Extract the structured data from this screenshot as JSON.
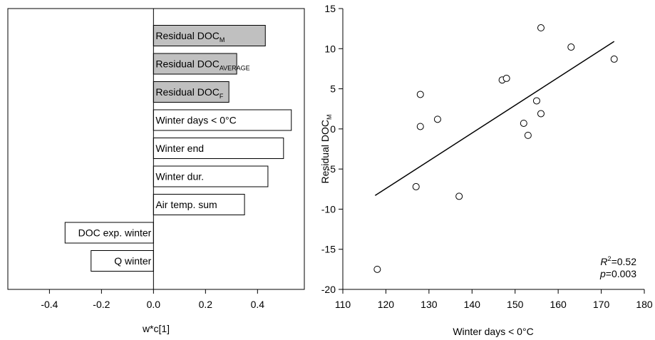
{
  "chart_data": [
    {
      "type": "bar",
      "orientation": "horizontal",
      "xlabel": "w*c[1]",
      "xlim": [
        -0.56,
        0.58
      ],
      "xticks": [
        -0.4,
        -0.2,
        0.0,
        0.2,
        0.4
      ],
      "xtick_labels": [
        "-0.4",
        "-0.2",
        "0.0",
        "0.2",
        "0.4"
      ],
      "bars": [
        {
          "label": "Residual DOC",
          "sub": "M",
          "value": 0.43,
          "color": "#c0c0c0"
        },
        {
          "label": "Residual DOC",
          "sub": "AVERAGE",
          "value": 0.32,
          "color": "#c0c0c0"
        },
        {
          "label": "Residual DOC",
          "sub": "F",
          "value": 0.29,
          "color": "#c0c0c0"
        },
        {
          "label": "Winter days < 0°C",
          "sub": "",
          "value": 0.53,
          "color": "#ffffff"
        },
        {
          "label": "Winter end",
          "sub": "",
          "value": 0.5,
          "color": "#ffffff"
        },
        {
          "label": "Winter dur.",
          "sub": "",
          "value": 0.44,
          "color": "#ffffff"
        },
        {
          "label": "Air temp. sum",
          "sub": "",
          "value": 0.35,
          "color": "#ffffff"
        },
        {
          "label": "DOC exp. winter",
          "sub": "",
          "value": -0.34,
          "color": "#ffffff"
        },
        {
          "label": "Q winter",
          "sub": "",
          "value": -0.24,
          "color": "#ffffff"
        }
      ]
    },
    {
      "type": "scatter",
      "xlabel": "Winter days < 0°C",
      "ylabel": "Residual DOC",
      "ylabel_sub": "M",
      "xlim": [
        110,
        180
      ],
      "ylim": [
        -20,
        15
      ],
      "xticks": [
        110,
        120,
        130,
        140,
        150,
        160,
        170,
        180
      ],
      "yticks": [
        -20,
        -15,
        -10,
        -5,
        0,
        5,
        10,
        15
      ],
      "points": [
        {
          "x": 118,
          "y": -17.5
        },
        {
          "x": 127,
          "y": -7.2
        },
        {
          "x": 128,
          "y": 4.3
        },
        {
          "x": 128,
          "y": 0.3
        },
        {
          "x": 132,
          "y": 1.2
        },
        {
          "x": 137,
          "y": -8.4
        },
        {
          "x": 147,
          "y": 6.1
        },
        {
          "x": 148,
          "y": 6.3
        },
        {
          "x": 152,
          "y": 0.7
        },
        {
          "x": 153,
          "y": -0.8
        },
        {
          "x": 155,
          "y": 3.5
        },
        {
          "x": 156,
          "y": 12.6
        },
        {
          "x": 156,
          "y": 1.9
        },
        {
          "x": 163,
          "y": 10.2
        },
        {
          "x": 173,
          "y": 8.7
        }
      ],
      "fit_line": {
        "x": [
          117.5,
          173
        ],
        "y": [
          -8.3,
          10.9
        ]
      },
      "annotation": {
        "r2_label": "R",
        "r2_sup": "2",
        "r2_value": "=0.52",
        "p_label": "p",
        "p_value": "=0.003"
      }
    }
  ]
}
